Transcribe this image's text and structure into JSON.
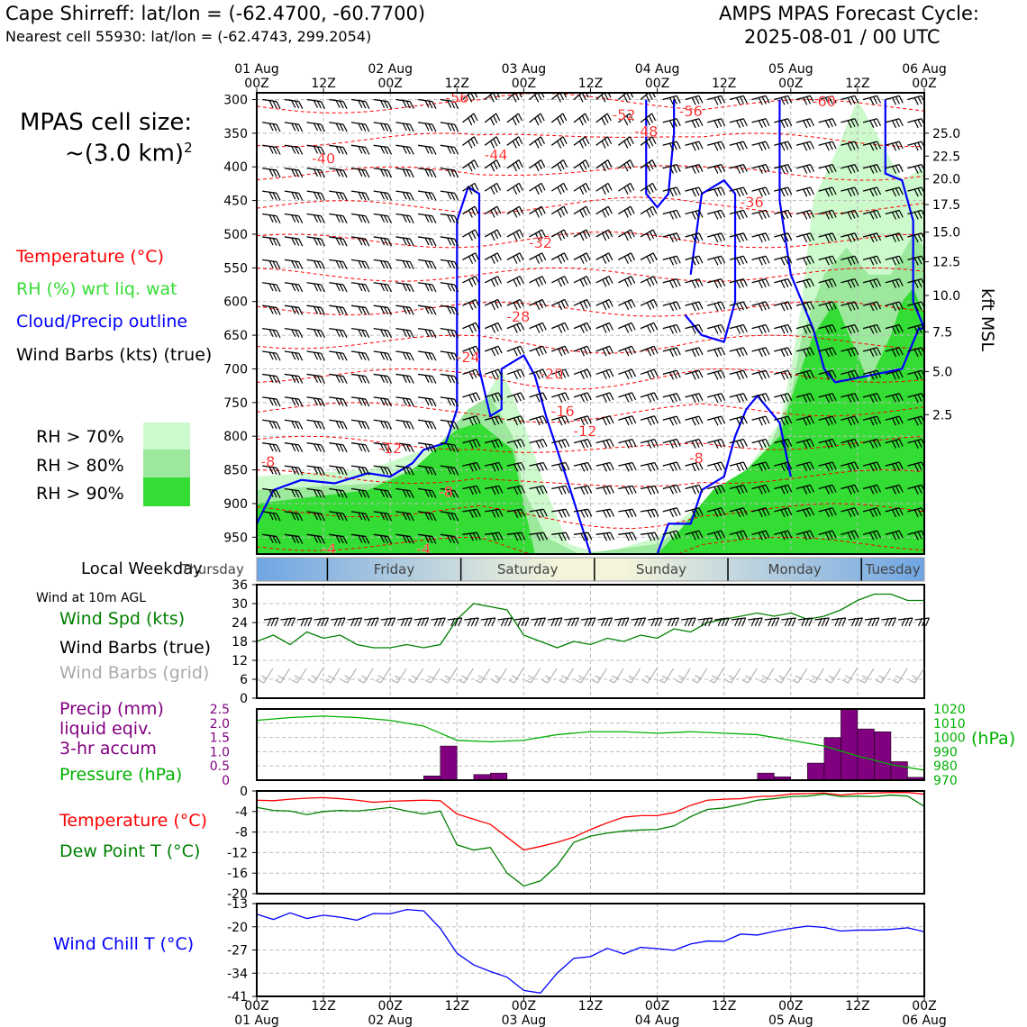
{
  "header": {
    "station_line": "Cape Shirreff: lat/lon = (-62.4700, -60.7700)",
    "cell_line": "Nearest cell 55930: lat/lon = (-62.4743, 299.2054)",
    "model_line1": "AMPS MPAS Forecast Cycle:",
    "model_line2": "2025-08-01 / 00 UTC"
  },
  "left_panel": {
    "cell_size_line1": "MPAS cell size:",
    "cell_size_line2": "~(3.0 km)",
    "cell_size_sup": "2",
    "legend_temperature": "Temperature (°C)",
    "legend_rh": "RH (%) wrt liq. wat",
    "legend_cloud": "Cloud/Precip outline",
    "legend_wind": "Wind Barbs (kts) (true)",
    "rh_levels": [
      "RH > 70%",
      "RH > 80%",
      "RH > 90%"
    ]
  },
  "time_axis": {
    "top_days": [
      "01 Aug",
      "02 Aug",
      "03 Aug",
      "04 Aug",
      "05 Aug",
      "06 Aug"
    ],
    "hour_labels": [
      "00Z",
      "12Z",
      "00Z",
      "12Z",
      "00Z",
      "12Z",
      "00Z",
      "12Z",
      "00Z",
      "12Z",
      "00Z"
    ]
  },
  "weekday_bar": {
    "label": "Local Weekday",
    "days": [
      "Thursday",
      "Friday",
      "Saturday",
      "Sunday",
      "Monday",
      "Tuesday"
    ]
  },
  "right_axis": {
    "label": "kft MSL",
    "ticks": [
      "25.0",
      "22.5",
      "20.0",
      "17.5",
      "15.0",
      "12.5",
      "10.0",
      "7.5",
      "5.0",
      "2.5"
    ]
  },
  "panel_labels": {
    "wind_header": "Wind at 10m AGL",
    "wind_speed": "Wind Spd (kts)",
    "wind_barbs_true": "Wind Barbs (true)",
    "wind_barbs_grid": "Wind Barbs (grid)",
    "precip_1": "Precip (mm)",
    "precip_2": "liquid eqiv.",
    "precip_3": "3-hr accum",
    "pressure": "Pressure (hPa)",
    "pressure_unit": "(hPa)",
    "temperature": "Temperature (°C)",
    "dewpoint": "Dew Point T (°C)",
    "windchill": "Wind Chill T (°C)"
  },
  "colors": {
    "temperature": "#ff0000",
    "dewpoint": "#008000",
    "wind_speed": "#008000",
    "pressure": "#00b000",
    "precip": "#800080",
    "windchill": "#0000ff",
    "cloud_outline": "#0000ff",
    "rh70": "#ccfacc",
    "rh80": "#9ce89c",
    "rh90": "#33dd33"
  },
  "chart_data": [
    {
      "type": "area",
      "name": "time-height cross section",
      "yaxis_left_label": "",
      "yaxis_left_ticks": [
        300,
        350,
        400,
        450,
        500,
        550,
        600,
        650,
        700,
        750,
        800,
        850,
        900,
        950
      ],
      "yaxis_right_label": "kft MSL",
      "ylim": [
        975,
        290
      ],
      "xlim_hours": [
        0,
        120
      ],
      "temperature_contour_labels": [
        {
          "hour": 36,
          "pres": 305,
          "t": "-56"
        },
        {
          "hour": 102,
          "pres": 310,
          "t": "-60"
        },
        {
          "hour": 66,
          "pres": 330,
          "t": "-52"
        },
        {
          "hour": 78,
          "pres": 325,
          "t": "-56"
        },
        {
          "hour": 70,
          "pres": 355,
          "t": "-48"
        },
        {
          "hour": 12,
          "pres": 395,
          "t": "-40"
        },
        {
          "hour": 43,
          "pres": 390,
          "t": "-44"
        },
        {
          "hour": 89,
          "pres": 460,
          "t": "-36"
        },
        {
          "hour": 51,
          "pres": 520,
          "t": "-32"
        },
        {
          "hour": 47,
          "pres": 630,
          "t": "-28"
        },
        {
          "hour": 38,
          "pres": 690,
          "t": "-24"
        },
        {
          "hour": 53,
          "pres": 715,
          "t": "-20"
        },
        {
          "hour": 55,
          "pres": 770,
          "t": "-16"
        },
        {
          "hour": 59,
          "pres": 800,
          "t": "-12"
        },
        {
          "hour": 24,
          "pres": 825,
          "t": "-12"
        },
        {
          "hour": 2,
          "pres": 845,
          "t": "-8"
        },
        {
          "hour": 79,
          "pres": 840,
          "t": "-8"
        },
        {
          "hour": 34,
          "pres": 890,
          "t": "-8"
        },
        {
          "hour": 13,
          "pres": 975,
          "t": "-4"
        },
        {
          "hour": 30,
          "pres": 975,
          "t": "-4"
        }
      ]
    },
    {
      "type": "line",
      "name": "wind10m",
      "ylim": [
        0,
        36
      ],
      "yticks": [
        0,
        6,
        12,
        18,
        24,
        30,
        36
      ],
      "x_hours": [
        0,
        3,
        6,
        9,
        12,
        15,
        18,
        21,
        24,
        27,
        30,
        33,
        36,
        39,
        42,
        45,
        48,
        51,
        54,
        57,
        60,
        63,
        66,
        69,
        72,
        75,
        78,
        81,
        84,
        87,
        90,
        93,
        96,
        99,
        102,
        105,
        108,
        111,
        114,
        117,
        120
      ],
      "series": [
        {
          "name": "Wind Spd (kts)",
          "values": [
            18,
            20,
            17,
            21,
            19,
            20,
            17,
            16,
            16,
            17,
            16,
            17,
            25,
            30,
            29,
            28,
            20,
            18,
            16,
            18,
            17,
            19,
            18,
            20,
            19,
            22,
            21,
            24,
            25,
            26,
            27,
            26,
            27,
            25,
            26,
            28,
            31,
            33,
            33,
            31,
            31
          ]
        }
      ]
    },
    {
      "type": "bar",
      "name": "precip_pressure",
      "precip_ylim": [
        0,
        2.5
      ],
      "precip_yticks": [
        "0",
        "0.5",
        "1.0",
        "1.5",
        "2.0",
        "2.5"
      ],
      "pressure_ylim": [
        970,
        1020
      ],
      "pressure_yticks": [
        "970",
        "980",
        "990",
        "1000",
        "1010",
        "1020"
      ],
      "precip_bins": [
        {
          "h0": 30,
          "h1": 33,
          "v": 0.15
        },
        {
          "h0": 33,
          "h1": 36,
          "v": 1.2
        },
        {
          "h0": 39,
          "h1": 42,
          "v": 0.2
        },
        {
          "h0": 42,
          "h1": 45,
          "v": 0.25
        },
        {
          "h0": 90,
          "h1": 93,
          "v": 0.25
        },
        {
          "h0": 93,
          "h1": 96,
          "v": 0.12
        },
        {
          "h0": 99,
          "h1": 102,
          "v": 0.6
        },
        {
          "h0": 102,
          "h1": 105,
          "v": 1.5
        },
        {
          "h0": 105,
          "h1": 108,
          "v": 2.5
        },
        {
          "h0": 108,
          "h1": 111,
          "v": 1.8
        },
        {
          "h0": 111,
          "h1": 114,
          "v": 1.7
        },
        {
          "h0": 114,
          "h1": 117,
          "v": 0.65
        },
        {
          "h0": 117,
          "h1": 120,
          "v": 0.1
        }
      ],
      "pressure_x_hours": [
        0,
        6,
        12,
        18,
        24,
        30,
        36,
        42,
        48,
        54,
        60,
        66,
        72,
        78,
        84,
        90,
        96,
        102,
        108,
        114,
        120
      ],
      "pressure_values": [
        1012,
        1014,
        1015,
        1014,
        1012,
        1008,
        998,
        997,
        998,
        1002,
        1004,
        1004,
        1003,
        1004,
        1003,
        1002,
        998,
        994,
        987,
        981,
        977
      ]
    },
    {
      "type": "line",
      "name": "temp_dewpoint",
      "ylim": [
        -20,
        0
      ],
      "yticks": [
        0,
        -4,
        -8,
        -12,
        -16,
        -20
      ],
      "x_hours": [
        0,
        3,
        6,
        9,
        12,
        15,
        18,
        21,
        24,
        27,
        30,
        33,
        36,
        39,
        42,
        45,
        48,
        51,
        54,
        57,
        60,
        63,
        66,
        69,
        72,
        75,
        78,
        81,
        84,
        87,
        90,
        93,
        96,
        99,
        102,
        105,
        108,
        111,
        114,
        117,
        120
      ],
      "series": [
        {
          "name": "Temperature",
          "values": [
            -1.8,
            -1.9,
            -1.6,
            -1.4,
            -1.3,
            -1.5,
            -1.8,
            -2.2,
            -2.0,
            -1.9,
            -1.8,
            -1.9,
            -4.5,
            -5.5,
            -6.5,
            -9,
            -11.5,
            -10.8,
            -10,
            -9,
            -7.5,
            -6.2,
            -5.1,
            -4.8,
            -4.8,
            -4.2,
            -2.8,
            -1.8,
            -1.6,
            -1.5,
            -1.1,
            -1.0,
            -0.6,
            -0.5,
            -0.4,
            -0.8,
            -0.5,
            -0.4,
            -0.3,
            -0.3,
            -0.6
          ]
        },
        {
          "name": "Dew Point",
          "values": [
            -3.2,
            -3.8,
            -3.9,
            -4.6,
            -4.0,
            -3.8,
            -3.9,
            -3.6,
            -3.2,
            -3.9,
            -4.5,
            -3.9,
            -10.5,
            -11.5,
            -11.0,
            -16.0,
            -18.5,
            -17.5,
            -14.5,
            -10.0,
            -8.8,
            -8.2,
            -7.8,
            -7.6,
            -7.5,
            -6.8,
            -5.0,
            -3.6,
            -3.3,
            -2.6,
            -1.8,
            -1.5,
            -1.1,
            -1.0,
            -0.6,
            -1.1,
            -1.0,
            -1.1,
            -0.8,
            -1.0,
            -3.0
          ]
        }
      ]
    },
    {
      "type": "line",
      "name": "windchill",
      "ylim": [
        -41,
        -13
      ],
      "yticks": [
        -13,
        -20,
        -27,
        -34,
        -41
      ],
      "x_hours": [
        0,
        3,
        6,
        9,
        12,
        15,
        18,
        21,
        24,
        27,
        30,
        33,
        36,
        39,
        42,
        45,
        48,
        51,
        54,
        57,
        60,
        63,
        66,
        69,
        72,
        75,
        78,
        81,
        84,
        87,
        90,
        93,
        96,
        99,
        102,
        105,
        108,
        111,
        114,
        117,
        120
      ],
      "series": [
        {
          "name": "Wind Chill",
          "values": [
            -16.2,
            -17.8,
            -15.8,
            -17.5,
            -16.5,
            -17.1,
            -18.0,
            -16.0,
            -16.1,
            -14.8,
            -15.2,
            -20.5,
            -28.0,
            -31.5,
            -33.5,
            -35.2,
            -39.2,
            -40.0,
            -34.0,
            -29.5,
            -29.0,
            -26.5,
            -28.2,
            -26.2,
            -26.6,
            -27.1,
            -25.2,
            -24.3,
            -24.4,
            -22.2,
            -22.5,
            -21.4,
            -20.5,
            -19.8,
            -20.2,
            -21.3,
            -21.0,
            -21.0,
            -20.8,
            -20.3,
            -21.5
          ]
        }
      ]
    }
  ]
}
